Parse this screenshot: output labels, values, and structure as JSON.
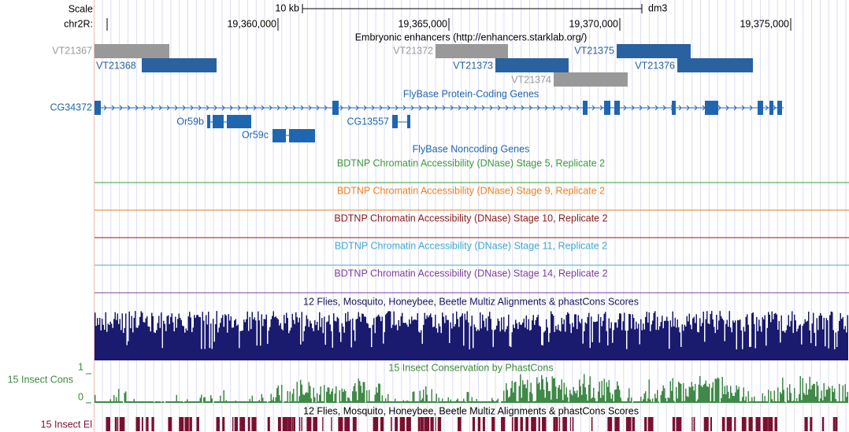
{
  "header": {
    "scale": "Scale",
    "scale_bar": "10 kb",
    "assembly": "dm3",
    "chrom": "chr2R:",
    "positions": [
      "19,360,000",
      "19,365,000",
      "19,370,000",
      "19,375,000"
    ]
  },
  "tracks": {
    "enhancers": {
      "title": "Embryonic enhancers (http://enhancers.starklab.org/)",
      "items": [
        "VT21367",
        "VT21368",
        "VT21372",
        "VT21373",
        "VT21375",
        "VT21376",
        "VT21374"
      ]
    },
    "protein_genes": {
      "title": "FlyBase Protein-Coding Genes",
      "genes": [
        "CG34372",
        "Or59b",
        "Or59c",
        "CG13557"
      ]
    },
    "noncoding_genes": {
      "title": "FlyBase Noncoding Genes"
    },
    "dnase": [
      "BDTNP Chromatin Accessibility (DNase) Stage 5, Replicate 2",
      "BDTNP Chromatin Accessibility (DNase) Stage 9, Replicate 2",
      "BDTNP Chromatin Accessibility (DNase) Stage 10, Replicate 2",
      "BDTNP Chromatin Accessibility (DNase) Stage 11, Replicate 2",
      "BDTNP Chromatin Accessibility (DNase) Stage 14, Replicate 2"
    ],
    "multiz_1": {
      "title": "12 Flies, Mosquito, Honeybee, Beetle Multiz Alignments & phastCons Scores"
    },
    "phastcons": {
      "title": "15 Insect Conservation by PhastCons",
      "label": "15 Insect Cons",
      "axis_max": 1,
      "axis_min": 0
    },
    "multiz_2": {
      "title": "12 Flies, Mosquito, Honeybee, Beetle Multiz Alignments & phastCons Scores",
      "label": "15 Insect El"
    }
  }
}
